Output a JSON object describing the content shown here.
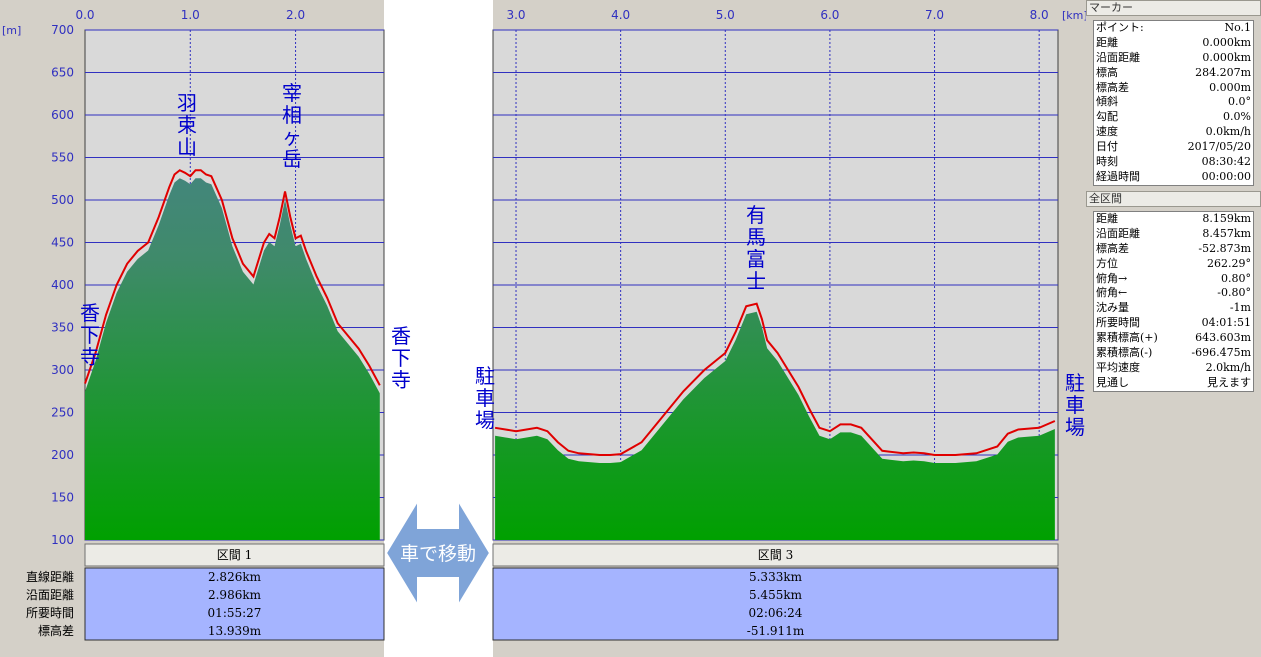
{
  "axis": {
    "x_unit": "[km]",
    "y_unit": "[m]",
    "y_ticks": [
      700,
      650,
      600,
      550,
      500,
      450,
      400,
      350,
      300,
      250,
      200,
      150,
      100
    ],
    "x_ticks_left": [
      "0.0",
      "1.0",
      "2.0"
    ],
    "x_ticks_right": [
      "3.0",
      "4.0",
      "5.0",
      "6.0",
      "7.0",
      "8.0"
    ]
  },
  "annotations": {
    "start_left": "香下寺",
    "peak_habatsuka": "羽束山",
    "peak_sai": "宰相ヶ岳",
    "end_left": "香下寺",
    "start_right": "駐車場",
    "peak_arima": "有馬富士",
    "end_right": "駐車場",
    "car_move": "車で移動"
  },
  "sections": {
    "labels": [
      "直線距離",
      "沿面距離",
      "所要時間",
      "標高差"
    ],
    "section1": {
      "header": "区間 1",
      "values": [
        "2.826km",
        "2.986km",
        "01:55:27",
        "13.939m"
      ]
    },
    "section3": {
      "header": "区間 3",
      "values": [
        "5.333km",
        "5.455km",
        "02:06:24",
        "-51.911m"
      ]
    }
  },
  "marker_panel": {
    "title": "マーカー",
    "rows": [
      [
        "ポイント:",
        "No.1"
      ],
      [
        "距離",
        "0.000km"
      ],
      [
        "沿面距離",
        "0.000km"
      ],
      [
        "標高",
        "284.207m"
      ],
      [
        "標高差",
        "0.000m"
      ],
      [
        "傾斜",
        "0.0°"
      ],
      [
        "勾配",
        "0.0%"
      ],
      [
        "速度",
        "0.0km/h"
      ],
      [
        "日付",
        "2017/05/20"
      ],
      [
        "時刻",
        "08:30:42"
      ],
      [
        "経過時間",
        "00:00:00"
      ]
    ]
  },
  "total_panel": {
    "title": "全区間",
    "rows": [
      [
        "距離",
        "8.159km"
      ],
      [
        "沿面距離",
        "8.457km"
      ],
      [
        "標高差",
        "-52.873m"
      ],
      [
        "方位",
        "262.29°"
      ],
      [
        "俯角→",
        "0.80°"
      ],
      [
        "俯角←",
        "-0.80°"
      ],
      [
        "沈み量",
        "-1m"
      ],
      [
        "所要時間",
        "04:01:51"
      ],
      [
        "累積標高(+)",
        "643.603m"
      ],
      [
        "累積標高(-)",
        "-696.475m"
      ],
      [
        "平均速度",
        "2.0km/h"
      ],
      [
        "見通し",
        "見えます"
      ]
    ]
  },
  "colors": {
    "profile_line": "#e00000",
    "fill_top": "#4a7f9a",
    "fill_bottom": "#00a000",
    "grid": "#3030c0",
    "label": "#0000cc"
  },
  "chart_data": {
    "type": "area",
    "xlabel": "[km]",
    "ylabel": "[m]",
    "ylim": [
      100,
      700
    ],
    "series": [
      {
        "name": "区間 1",
        "x": [
          0.0,
          0.1,
          0.2,
          0.3,
          0.4,
          0.5,
          0.6,
          0.7,
          0.8,
          0.85,
          0.9,
          0.95,
          1.0,
          1.05,
          1.1,
          1.15,
          1.2,
          1.3,
          1.4,
          1.5,
          1.6,
          1.7,
          1.75,
          1.8,
          1.85,
          1.9,
          1.95,
          2.0,
          2.05,
          2.1,
          2.2,
          2.3,
          2.4,
          2.5,
          2.6,
          2.7,
          2.8
        ],
        "y": [
          284,
          320,
          365,
          400,
          425,
          440,
          450,
          480,
          515,
          530,
          535,
          532,
          528,
          535,
          535,
          530,
          528,
          500,
          455,
          425,
          410,
          450,
          460,
          455,
          480,
          510,
          480,
          455,
          458,
          440,
          410,
          385,
          355,
          340,
          325,
          305,
          282
        ]
      },
      {
        "name": "区間 3",
        "x": [
          2.8,
          2.9,
          3.0,
          3.1,
          3.2,
          3.3,
          3.4,
          3.5,
          3.6,
          3.7,
          3.8,
          3.9,
          4.0,
          4.2,
          4.4,
          4.6,
          4.8,
          5.0,
          5.1,
          5.2,
          5.3,
          5.35,
          5.4,
          5.5,
          5.6,
          5.7,
          5.8,
          5.9,
          6.0,
          6.1,
          6.2,
          6.3,
          6.5,
          6.7,
          6.8,
          6.9,
          7.0,
          7.2,
          7.4,
          7.6,
          7.7,
          7.8,
          8.0,
          8.15
        ],
        "y": [
          232,
          230,
          228,
          230,
          232,
          228,
          215,
          205,
          202,
          201,
          200,
          200,
          201,
          215,
          245,
          275,
          300,
          320,
          345,
          375,
          378,
          360,
          335,
          320,
          300,
          280,
          255,
          232,
          228,
          236,
          236,
          232,
          205,
          202,
          203,
          202,
          200,
          200,
          202,
          210,
          225,
          230,
          232,
          240
        ]
      }
    ]
  }
}
